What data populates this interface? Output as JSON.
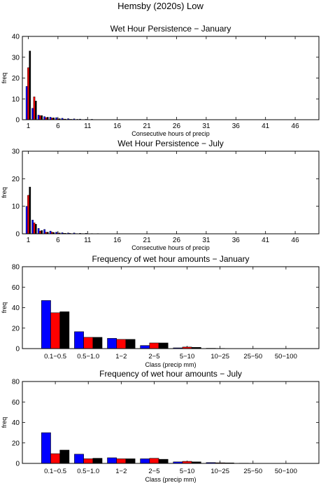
{
  "figure": {
    "title": "Hemsby (2020s) Low"
  },
  "colors": {
    "series": [
      "#0000ff",
      "#ff0000",
      "#000000"
    ],
    "axes": "#000000",
    "background": "#ffffff"
  },
  "chart_data": [
    {
      "type": "bar",
      "title": "Wet Hour Persistence − January",
      "xlabel": "Consecutive hours of precip",
      "ylabel": "freq",
      "ylim": [
        0,
        40
      ],
      "yticks": [
        0,
        10,
        20,
        30,
        40
      ],
      "xlim": [
        0,
        50
      ],
      "xticks": [
        1,
        6,
        11,
        16,
        21,
        26,
        31,
        36,
        41,
        46
      ],
      "grid": false,
      "legend": "none",
      "x": [
        1,
        2,
        3,
        4,
        5,
        6,
        7,
        8,
        9,
        10,
        11,
        12,
        13,
        14,
        15
      ],
      "series": [
        {
          "values": [
            16,
            5.5,
            2.2,
            1.5,
            1.2,
            1.0,
            0.7,
            0.5,
            0.4,
            0.3,
            0.2,
            0.2,
            0.1,
            0.1,
            0
          ]
        },
        {
          "values": [
            25,
            11,
            2.0,
            1.0,
            0.8,
            0.4,
            0.3,
            0.2,
            0.1,
            0.1,
            0.1,
            0,
            0,
            0,
            0
          ]
        },
        {
          "values": [
            33,
            9,
            2.0,
            1.2,
            0.9,
            0.5,
            0.3,
            0.2,
            0.2,
            0.1,
            0.1,
            0,
            0,
            0,
            0
          ]
        }
      ]
    },
    {
      "type": "bar",
      "title": "Wet Hour Persistence − July",
      "xlabel": "Consecutive hours of precip",
      "ylabel": "freq",
      "ylim": [
        0,
        30
      ],
      "yticks": [
        0,
        10,
        20,
        30
      ],
      "xlim": [
        0,
        50
      ],
      "xticks": [
        1,
        6,
        11,
        16,
        21,
        26,
        31,
        36,
        41,
        46
      ],
      "grid": false,
      "legend": "none",
      "x": [
        1,
        2,
        3,
        4,
        5,
        6,
        7,
        8,
        9,
        10,
        11,
        12,
        13,
        14,
        15
      ],
      "series": [
        {
          "values": [
            10,
            5,
            2.0,
            1.6,
            1.0,
            0.6,
            0.4,
            0.3,
            0.3,
            0.2,
            0.2,
            0.1,
            0.1,
            0,
            0
          ]
        },
        {
          "values": [
            14,
            4,
            1.0,
            0.6,
            0.6,
            0.3,
            0.2,
            0.2,
            0.1,
            0.1,
            0,
            0,
            0,
            0,
            0
          ]
        },
        {
          "values": [
            17,
            3.5,
            1.2,
            0.6,
            0.5,
            0.3,
            0.2,
            0.1,
            0.1,
            0.1,
            0,
            0,
            0,
            0,
            0
          ]
        }
      ]
    },
    {
      "type": "bar",
      "title": "Frequency of wet hour amounts − January",
      "xlabel": "Class (precip mm)",
      "ylabel": "freq",
      "ylim": [
        0,
        80
      ],
      "yticks": [
        0,
        20,
        40,
        60,
        80
      ],
      "grid": false,
      "legend": "none",
      "categories": [
        "0.1−0.5",
        "0.5−1.0",
        "1−2",
        "2−5",
        "5−10",
        "10−25",
        "25−50",
        "50−100"
      ],
      "series": [
        {
          "values": [
            47,
            16.5,
            10,
            3,
            0.7,
            0.3,
            0,
            0
          ]
        },
        {
          "values": [
            35,
            11,
            9,
            5.5,
            1.5,
            0.2,
            0,
            0
          ]
        },
        {
          "values": [
            36,
            11,
            9,
            5.5,
            1.2,
            0.1,
            0,
            0
          ]
        }
      ]
    },
    {
      "type": "bar",
      "title": "Frequency of wet hour amounts − July",
      "xlabel": "Class (precip mm)",
      "ylabel": "freq",
      "ylim": [
        0,
        80
      ],
      "yticks": [
        0,
        20,
        40,
        60,
        80
      ],
      "grid": false,
      "legend": "none",
      "categories": [
        "0.1−0.5",
        "0.5−1.0",
        "1−2",
        "2−5",
        "5−10",
        "10−25",
        "25−50",
        "50−100"
      ],
      "series": [
        {
          "values": [
            30,
            9,
            5.5,
            4.5,
            1.5,
            0.8,
            0.2,
            0
          ]
        },
        {
          "values": [
            9.5,
            4.5,
            4.5,
            5,
            2,
            0.6,
            0.1,
            0
          ]
        },
        {
          "values": [
            13,
            5,
            4.5,
            4,
            1.5,
            0.5,
            0.1,
            0
          ]
        }
      ]
    }
  ]
}
